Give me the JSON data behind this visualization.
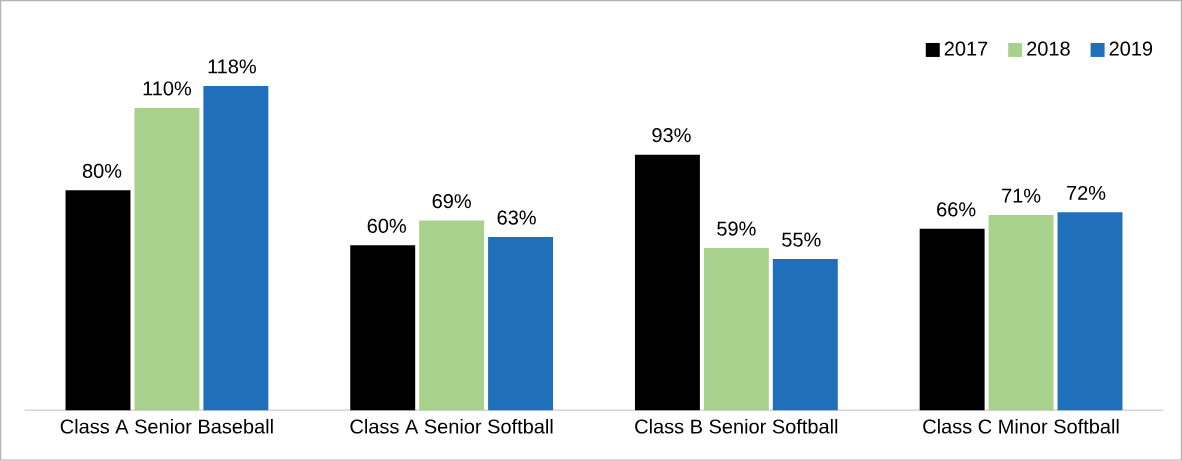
{
  "chart_data": {
    "type": "bar",
    "categories": [
      "Class A Senior Baseball",
      "Class A Senior Softball",
      "Class B Senior Softball",
      "Class C Minor Softball"
    ],
    "series": [
      {
        "name": "2017",
        "color": "#000000",
        "values": [
          80,
          60,
          93,
          66
        ],
        "value_labels": [
          "80%",
          "60%",
          "93%",
          "66%"
        ]
      },
      {
        "name": "2018",
        "color": "#a9d18e",
        "values": [
          110,
          69,
          59,
          71
        ],
        "value_labels": [
          "110%",
          "69%",
          "59%",
          "71%"
        ]
      },
      {
        "name": "2019",
        "color": "#1f6fba",
        "values": [
          118,
          63,
          55,
          72
        ],
        "value_labels": [
          "118%",
          "63%",
          "55%",
          "72%"
        ]
      }
    ],
    "legend": "top right"
  }
}
